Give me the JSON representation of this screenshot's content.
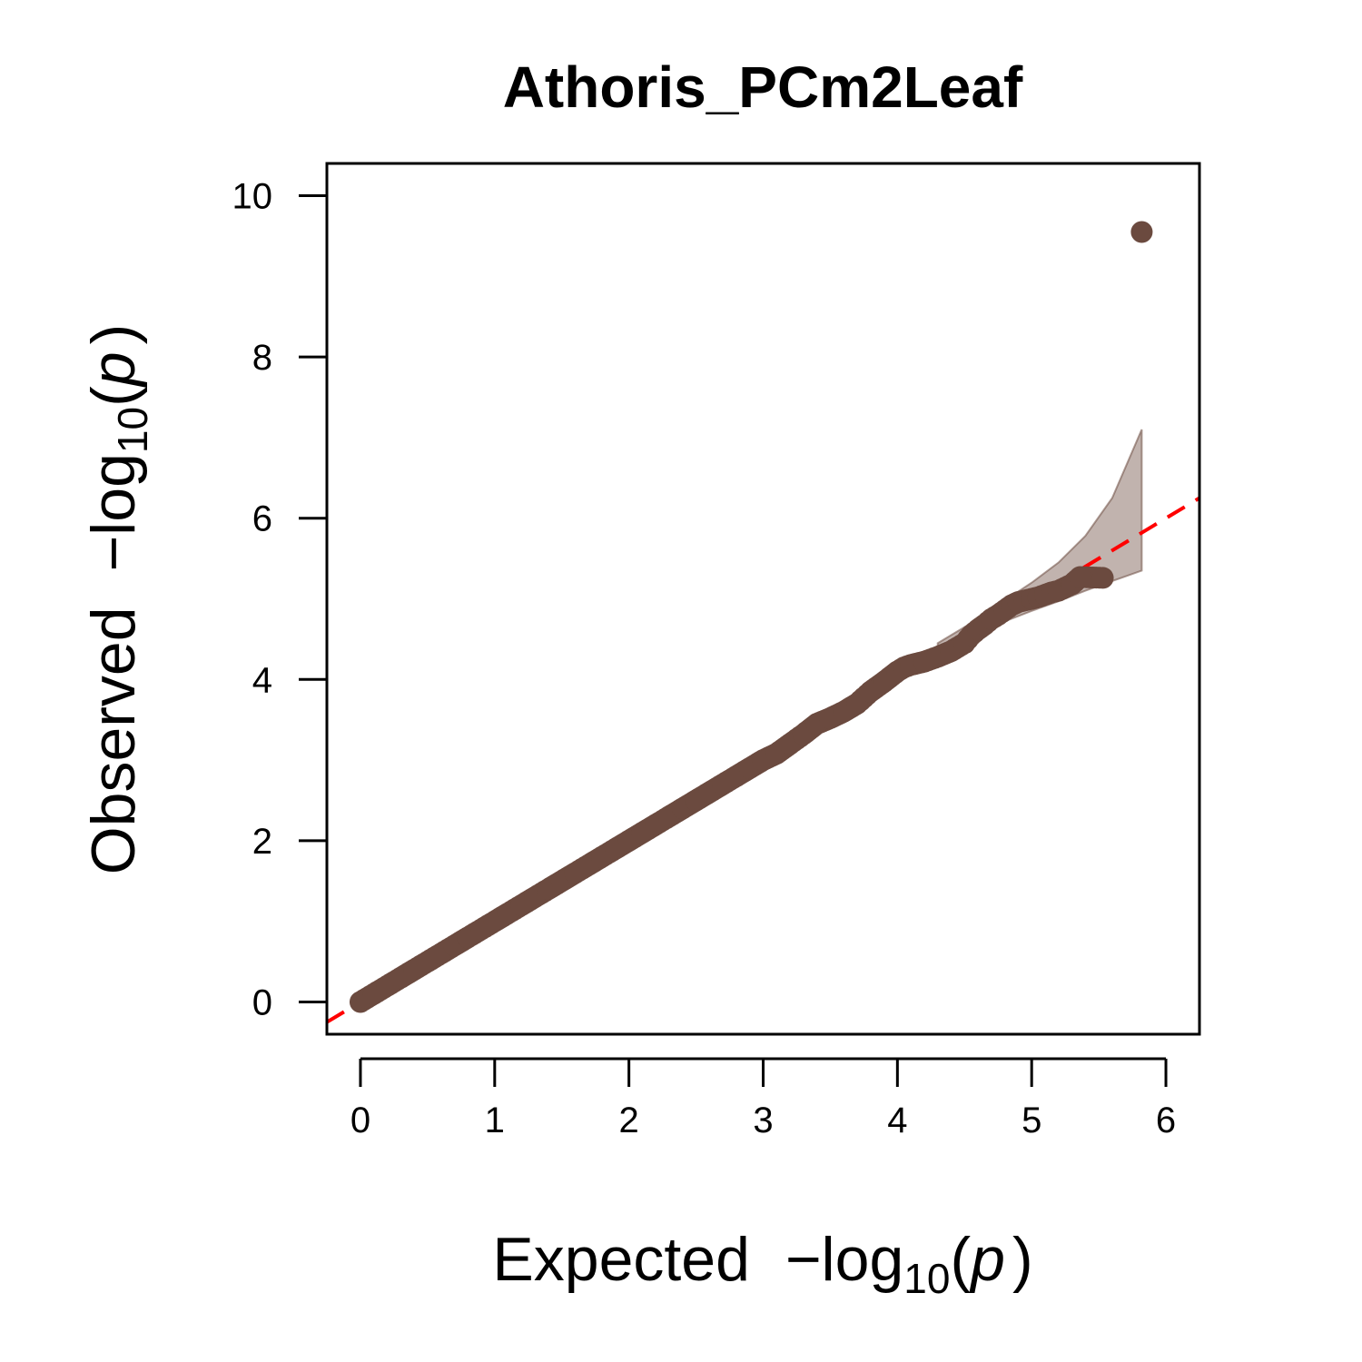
{
  "chart_data": {
    "type": "scatter",
    "title": "Athoris_PCm2Leaf",
    "xlabel": {
      "prefix": "Expected",
      "minus": "−",
      "log": "log",
      "sub": "10",
      "open": "(",
      "var": "p",
      "close": ")"
    },
    "ylabel": {
      "prefix": "Observed",
      "minus": "−",
      "log": "log",
      "sub": "10",
      "open": "(",
      "var": "p",
      "close": ")"
    },
    "xlim": [
      -0.25,
      6.25
    ],
    "ylim": [
      -0.4,
      10.4
    ],
    "xticks": [
      0,
      1,
      2,
      3,
      4,
      5,
      6
    ],
    "yticks": [
      0,
      2,
      4,
      6,
      8,
      10
    ],
    "grid": false,
    "reference_line": {
      "slope": 1,
      "intercept": 0,
      "color": "#ff0000",
      "style": "dashed"
    },
    "confidence_band": {
      "color": "#6b4a3f",
      "x": [
        4.3,
        4.6,
        4.8,
        5.0,
        5.2,
        5.4,
        5.6,
        5.82
      ],
      "lower": [
        4.4,
        4.58,
        4.72,
        4.85,
        4.97,
        5.1,
        5.22,
        5.35
      ],
      "upper": [
        4.45,
        4.75,
        4.98,
        5.2,
        5.45,
        5.78,
        6.25,
        7.1
      ]
    },
    "series": [
      {
        "color": "#6b4a3f",
        "x": [
          0,
          0.05,
          0.1,
          0.2,
          0.3,
          0.4,
          0.5,
          0.6,
          0.7,
          0.8,
          0.9,
          1.0,
          1.1,
          1.2,
          1.3,
          1.4,
          1.5,
          1.6,
          1.7,
          1.8,
          1.9,
          2.0,
          2.1,
          2.2,
          2.3,
          2.4,
          2.5,
          2.6,
          2.7,
          2.8,
          2.9,
          3.0,
          3.1,
          3.2,
          3.3,
          3.4,
          3.5,
          3.6,
          3.7,
          3.8,
          3.9,
          4.0,
          4.05,
          4.1,
          4.2,
          4.3,
          4.4,
          4.5,
          4.55,
          4.6,
          4.65,
          4.7,
          4.75,
          4.8,
          4.85,
          4.9,
          4.95,
          5.0,
          5.05,
          5.1,
          5.15,
          5.2,
          5.3,
          5.36,
          5.53,
          5.82
        ],
        "y": [
          0,
          0.05,
          0.1,
          0.2,
          0.3,
          0.4,
          0.5,
          0.6,
          0.7,
          0.8,
          0.9,
          1.0,
          1.1,
          1.2,
          1.3,
          1.4,
          1.5,
          1.6,
          1.7,
          1.8,
          1.9,
          2.0,
          2.1,
          2.2,
          2.3,
          2.4,
          2.5,
          2.6,
          2.7,
          2.8,
          2.9,
          3.0,
          3.08,
          3.2,
          3.32,
          3.45,
          3.52,
          3.6,
          3.7,
          3.85,
          3.97,
          4.1,
          4.15,
          4.18,
          4.22,
          4.28,
          4.35,
          4.45,
          4.55,
          4.62,
          4.68,
          4.75,
          4.8,
          4.86,
          4.92,
          4.96,
          4.98,
          5.0,
          5.02,
          5.05,
          5.08,
          5.1,
          5.18,
          5.27,
          5.26,
          9.55
        ]
      }
    ]
  }
}
